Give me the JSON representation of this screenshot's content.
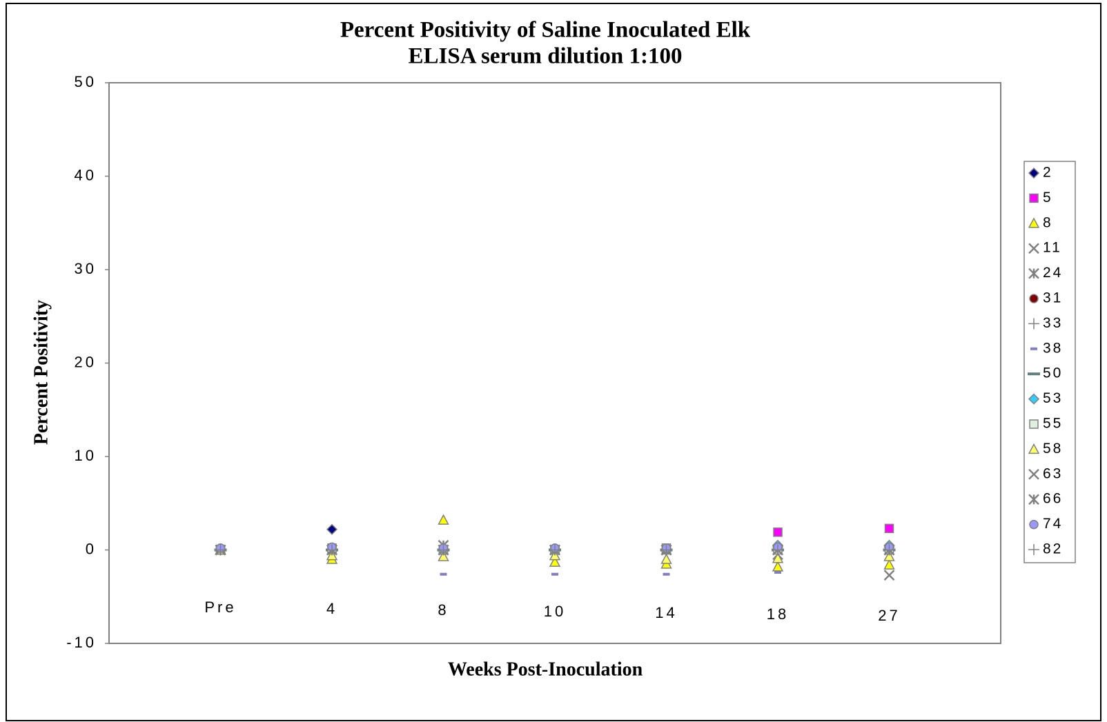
{
  "chart_data": {
    "type": "scatter",
    "title": "Percent Positivity of Saline Inoculated Elk",
    "subtitle": "ELISA serum dilution 1:100",
    "x_label": "Weeks Post-Inoculation",
    "y_label": "Percent Positivity",
    "categories": [
      "Pre",
      "4",
      "8",
      "10",
      "14",
      "18",
      "27"
    ],
    "ylim": [
      -10,
      50
    ],
    "yticks": [
      -10,
      0,
      10,
      20,
      30,
      40,
      50
    ],
    "grid": false,
    "legend": "right",
    "series": [
      {
        "name": "2",
        "color": "#000080",
        "marker": "diamond",
        "values": [
          0,
          2.2,
          0,
          0,
          0,
          0.3,
          0.3
        ]
      },
      {
        "name": "5",
        "color": "#ff00ff",
        "marker": "square",
        "values": [
          0,
          0,
          0,
          0,
          0,
          1.9,
          2.3
        ]
      },
      {
        "name": "8",
        "color": "#ffff00",
        "marker": "triangle",
        "values": [
          0,
          -1,
          3.2,
          -1.3,
          -1.5,
          -1.8,
          -1.6
        ]
      },
      {
        "name": "11",
        "color": "#808080",
        "marker": "x",
        "values": [
          0,
          0,
          0,
          0,
          0,
          -0.5,
          -2.7
        ]
      },
      {
        "name": "24",
        "color": "#808080",
        "marker": "star",
        "values": [
          0,
          0,
          0.5,
          0,
          0,
          0,
          0
        ]
      },
      {
        "name": "31",
        "color": "#800000",
        "marker": "circle",
        "values": [
          0,
          0,
          0,
          0,
          0,
          0,
          0
        ]
      },
      {
        "name": "33",
        "color": "#808080",
        "marker": "plus",
        "values": [
          0,
          0,
          0,
          0,
          0,
          0,
          0
        ]
      },
      {
        "name": "38",
        "color": "#8080c0",
        "marker": "dash",
        "values": [
          0,
          0,
          -2.6,
          -2.6,
          -2.6,
          -2.4,
          0
        ]
      },
      {
        "name": "50",
        "color": "#608080",
        "marker": "longdash",
        "values": [
          0,
          0,
          0,
          0,
          0,
          0,
          0
        ]
      },
      {
        "name": "53",
        "color": "#33ccff",
        "marker": "diamond",
        "values": [
          0,
          0,
          0,
          0,
          0,
          0.5,
          0.5
        ]
      },
      {
        "name": "55",
        "color": "#e0f0e0",
        "marker": "square",
        "values": [
          0,
          0.2,
          0,
          0,
          0.2,
          0,
          0
        ]
      },
      {
        "name": "58",
        "color": "#ffff66",
        "marker": "triangle",
        "values": [
          0,
          -0.6,
          -0.7,
          -0.6,
          -1,
          -0.9,
          -0.7
        ]
      },
      {
        "name": "63",
        "color": "#808080",
        "marker": "x",
        "values": [
          0,
          0,
          0,
          0,
          0,
          0,
          0
        ]
      },
      {
        "name": "66",
        "color": "#808080",
        "marker": "star",
        "values": [
          0,
          0,
          0,
          0,
          0,
          0,
          0
        ]
      },
      {
        "name": "74",
        "color": "#9999ff",
        "marker": "circle",
        "values": [
          0.2,
          0.3,
          0.2,
          0.2,
          0.2,
          0.3,
          0.3
        ]
      },
      {
        "name": "82",
        "color": "#808080",
        "marker": "plus",
        "values": [
          0,
          0,
          0,
          0,
          0,
          0,
          0
        ]
      }
    ]
  }
}
